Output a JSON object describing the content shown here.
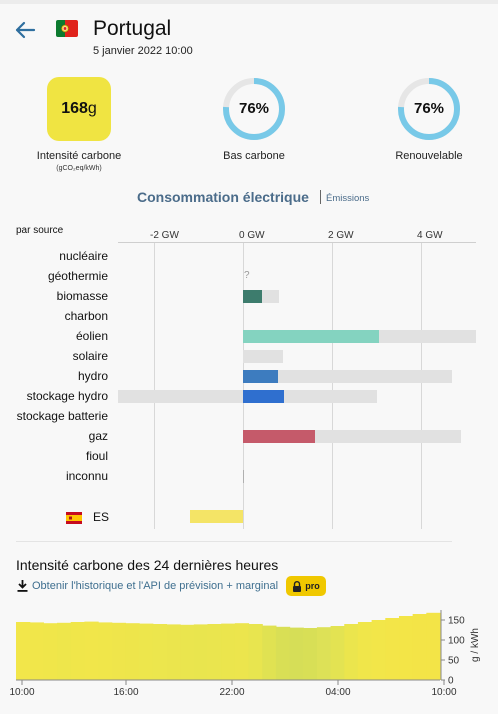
{
  "header": {
    "country": "Portugal",
    "datetime": "5 janvier 2022 10:00"
  },
  "stats": {
    "carbon_value": "168",
    "carbon_unit": "g",
    "carbon_label": "Intensité carbone",
    "carbon_sublabel": "(gCO₂eq/kWh)",
    "low_carbon_percent": 76,
    "low_carbon_value": "76%",
    "low_carbon_label": "Bas carbone",
    "renewable_percent": 76,
    "renewable_value": "76%",
    "renewable_label": "Renouvelable",
    "ring_color": "#78c9e8",
    "ring_track": "#e6e6e6",
    "carbon_box_color": "#f0e442"
  },
  "consumption": {
    "title": "Consommation électrique",
    "emissions_link": "Émissions",
    "by_source_label": "par source",
    "axis_ticks": [
      "-2 GW",
      "0 GW",
      "2 GW",
      "4 GW"
    ],
    "unknown_mark": "?"
  },
  "chart_data": {
    "type": "bar",
    "orientation": "horizontal",
    "unit": "GW",
    "xlim": [
      -3,
      5.5
    ],
    "xticks": [
      -2,
      0,
      2,
      4
    ],
    "xtick_labels": [
      "-2 GW",
      "0 GW",
      "2 GW",
      "4 GW"
    ],
    "categories": [
      "nucléaire",
      "géothermie",
      "biomasse",
      "charbon",
      "éolien",
      "solaire",
      "hydro",
      "stockage hydro",
      "stockage batterie",
      "gaz",
      "fioul",
      "inconnu"
    ],
    "series": [
      {
        "values": [
          0,
          null,
          0.42,
          0,
          3.05,
          0,
          0.78,
          0.92,
          0,
          1.62,
          0,
          0.02
        ]
      }
    ],
    "capacity": [
      {
        "category": "biomasse",
        "range": [
          0,
          0.8
        ]
      },
      {
        "category": "éolien",
        "range": [
          0,
          5.6
        ]
      },
      {
        "category": "solaire",
        "range": [
          0,
          0.9
        ]
      },
      {
        "category": "hydro",
        "range": [
          0,
          4.7
        ]
      },
      {
        "category": "stockage hydro",
        "range": [
          -3,
          3.0
        ]
      },
      {
        "category": "gaz",
        "range": [
          0,
          4.9
        ]
      }
    ],
    "colors": {
      "biomasse": "#3d7c6d",
      "éolien": "#84d3c0",
      "solaire": "#f3d14c",
      "hydro": "#3d7cbf",
      "stockage hydro": "#2f6fcf",
      "gaz": "#c55a6a",
      "inconnu": "#b0b0b0",
      "capacity": "#e1e1e1"
    },
    "exchange": [
      {
        "country": "ES",
        "value": -1.2,
        "color": "#f4e466"
      }
    ]
  },
  "history": {
    "title": "Intensité carbone des 24 dernières heures",
    "link_text": "Obtenir l'historique et l'API de prévision + marginal",
    "pro_label": "pro",
    "y_axis_label": "g / kWh",
    "y_ticks": [
      "150",
      "100",
      "50",
      "0"
    ],
    "x_ticks": [
      "10:00",
      "16:00",
      "22:00",
      "04:00",
      "10:00"
    ]
  },
  "history_chart": {
    "type": "area",
    "ylim": [
      0,
      175
    ],
    "values": [
      145,
      144,
      142,
      143,
      145,
      146,
      144,
      143,
      142,
      141,
      140,
      139,
      138,
      139,
      140,
      141,
      142,
      140,
      136,
      133,
      131,
      130,
      132,
      135,
      140,
      145,
      150,
      155,
      160,
      165,
      168
    ],
    "colors": [
      "#f2e64a",
      "#f1e64a",
      "#f0e64a",
      "#eee64b",
      "#f0e64a",
      "#f1e64a",
      "#f0e64a",
      "#efe54b",
      "#eee54b",
      "#ede64c",
      "#ece64d",
      "#ebe54d",
      "#eae54e",
      "#e9e54e",
      "#eae54e",
      "#ebe54d",
      "#ece54d",
      "#e8e54f",
      "#e0e252",
      "#d9df55",
      "#d6de57",
      "#d8df56",
      "#dde157",
      "#e3e352",
      "#ebe54d",
      "#f0e64a",
      "#f2e649",
      "#f3e548",
      "#f3e547",
      "#f3e447",
      "#f3e447"
    ]
  }
}
